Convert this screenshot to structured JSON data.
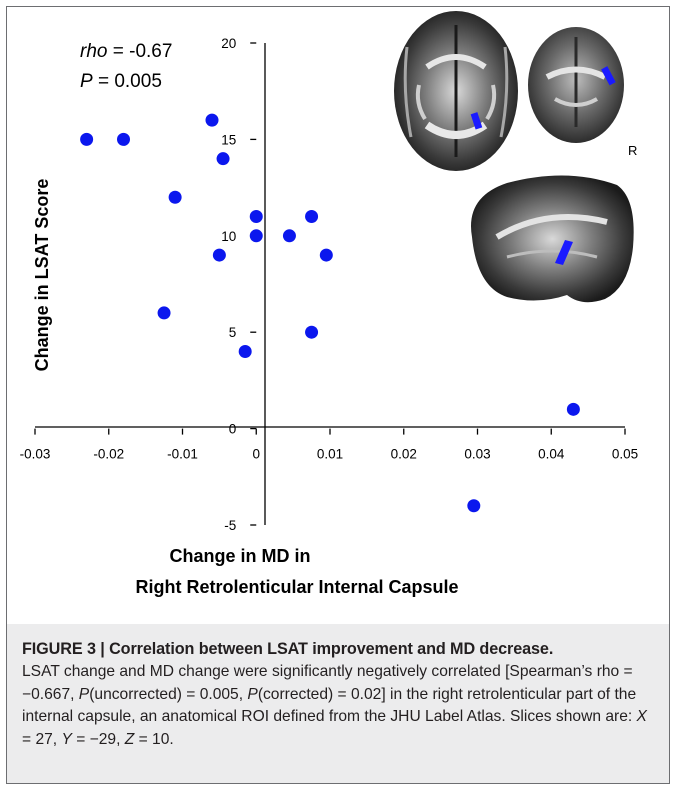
{
  "chart_data": {
    "type": "scatter",
    "x": [
      -0.023,
      -0.018,
      -0.006,
      -0.0045,
      -0.011,
      0.0,
      0.0075,
      0.0,
      0.0045,
      -0.005,
      0.0095,
      -0.0125,
      0.0075,
      -0.0015,
      0.043,
      0.0295
    ],
    "y": [
      15,
      15,
      16,
      14,
      12,
      11,
      11,
      10,
      10,
      9,
      9,
      6,
      5,
      4,
      1,
      -4
    ],
    "xlim": [
      -0.03,
      0.05
    ],
    "ylim": [
      -5,
      20
    ],
    "x_ticks": [
      -0.03,
      -0.02,
      -0.01,
      0,
      0.01,
      0.02,
      0.03,
      0.04,
      0.05
    ],
    "y_ticks": [
      20,
      15,
      10,
      5,
      0,
      -5
    ],
    "x_tick_labels": [
      "-0.03",
      "-0.02",
      "-0.01",
      "0",
      "0.01",
      "0.02",
      "0.03",
      "0.04",
      "0.05"
    ],
    "y_tick_labels": [
      "20",
      "15",
      "10",
      "5",
      "0",
      "-5"
    ],
    "xlabel_line1": "Change in MD in",
    "xlabel_line2": "Right Retrolenticular Internal Capsule",
    "ylabel": "Change in LSAT Score",
    "grid": false,
    "point_color": "#0b17ee"
  },
  "stats": {
    "rho_label": "rho",
    "rho_value": " = -0.67",
    "p_label": "P",
    "p_value": " = 0.005"
  },
  "brain_inset": {
    "orientation_label": "R",
    "roi_color": "#1a1aff"
  },
  "caption": {
    "title": "FIGURE 3 | Correlation between LSAT improvement and MD decrease.",
    "body_1": "LSAT change and MD change were significantly negatively correlated [Spearman’s rho = −0.667, ",
    "p_uncorr": "P",
    "body_2": "(uncorrected) = 0.005, ",
    "p_corr": "P",
    "body_3": "(corrected) = 0.02] in the right retrolenticular part of the internal capsule, an anatomical ROI defined from the JHU Label Atlas. Slices shown are: ",
    "x_sym": "X",
    "x_val": " = 27, ",
    "y_sym": "Y",
    "y_val": " = −29, ",
    "z_sym": "Z",
    "z_val": " = 10."
  }
}
